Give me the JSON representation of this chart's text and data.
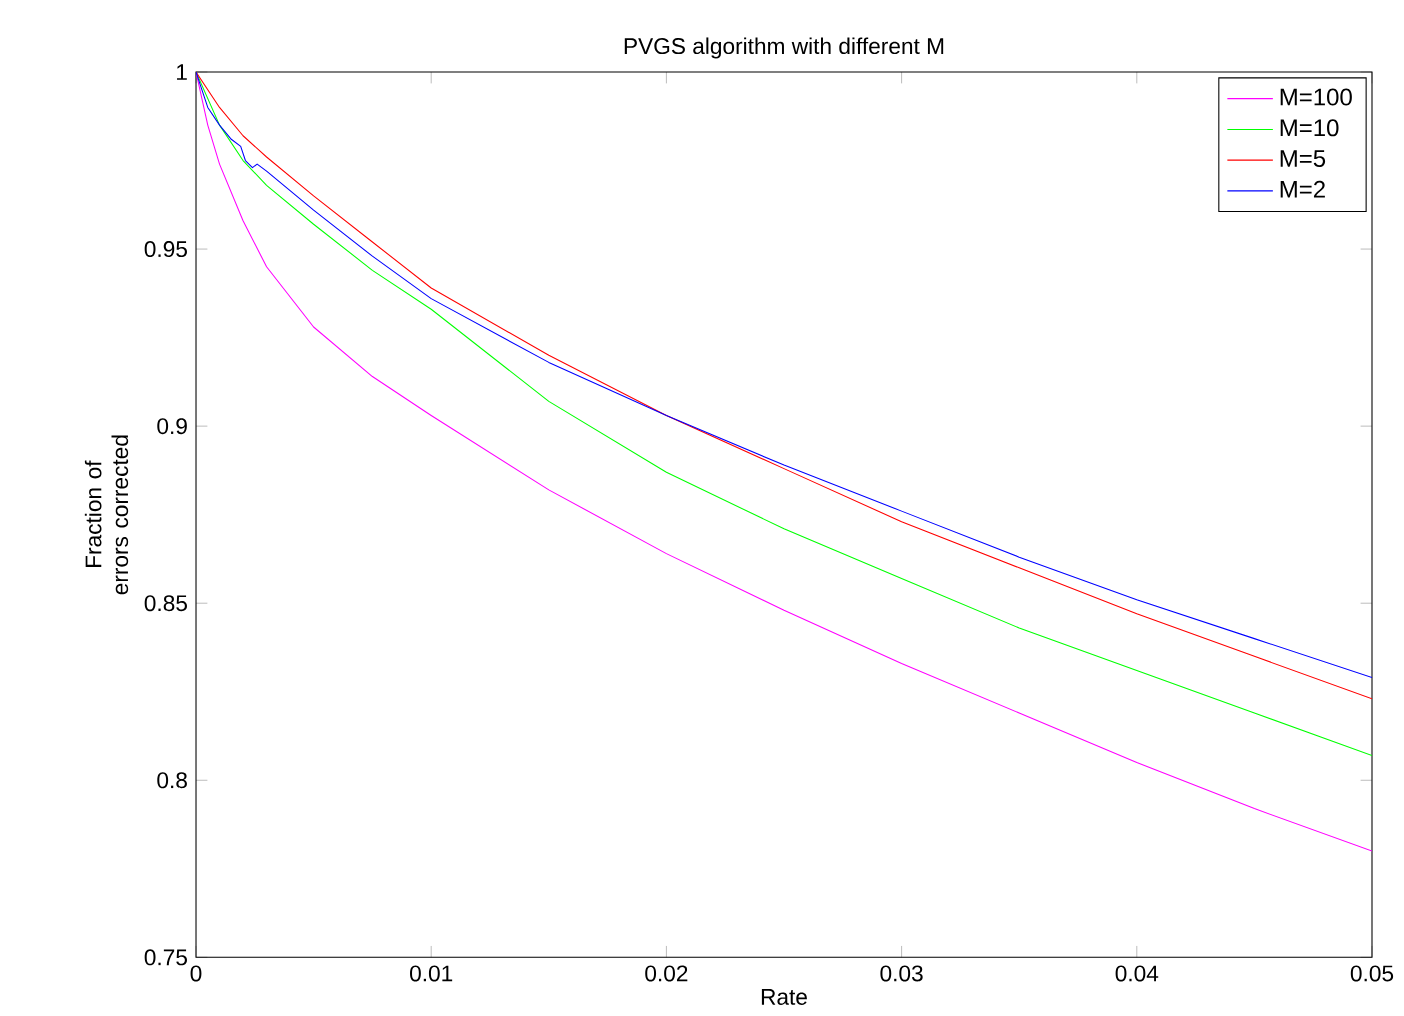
{
  "chart_data": {
    "type": "line",
    "title": "PVGS algorithm with different M",
    "xlabel": "Rate",
    "ylabel": "Fraction of errors corrected",
    "xlim": [
      0,
      0.05
    ],
    "ylim": [
      0.75,
      1
    ],
    "xticks": [
      0,
      0.01,
      0.02,
      0.03,
      0.04,
      0.05
    ],
    "yticks": [
      0.75,
      0.8,
      0.85,
      0.9,
      0.95,
      1
    ],
    "grid": false,
    "legend": "top right",
    "series": [
      {
        "name": "M=100",
        "color": "#ff00ff",
        "x": [
          0,
          0.0005,
          0.001,
          0.002,
          0.003,
          0.005,
          0.0075,
          0.01,
          0.015,
          0.02,
          0.025,
          0.03,
          0.035,
          0.04,
          0.045,
          0.05
        ],
        "values": [
          1,
          0.985,
          0.974,
          0.958,
          0.945,
          0.928,
          0.914,
          0.903,
          0.882,
          0.864,
          0.848,
          0.833,
          0.819,
          0.805,
          0.792,
          0.78
        ]
      },
      {
        "name": "M=10",
        "color": "#00ff00",
        "x": [
          0,
          0.001,
          0.002,
          0.003,
          0.005,
          0.0075,
          0.01,
          0.015,
          0.02,
          0.025,
          0.03,
          0.035,
          0.04,
          0.045,
          0.05
        ],
        "values": [
          1,
          0.985,
          0.975,
          0.968,
          0.957,
          0.944,
          0.933,
          0.907,
          0.887,
          0.871,
          0.857,
          0.843,
          0.831,
          0.819,
          0.807
        ]
      },
      {
        "name": "M=5",
        "color": "#ff0000",
        "x": [
          0,
          0.001,
          0.002,
          0.003,
          0.005,
          0.0075,
          0.01,
          0.015,
          0.02,
          0.025,
          0.03,
          0.035,
          0.04,
          0.045,
          0.05
        ],
        "values": [
          1,
          0.99,
          0.982,
          0.976,
          0.965,
          0.952,
          0.939,
          0.92,
          0.903,
          0.888,
          0.873,
          0.86,
          0.847,
          0.835,
          0.823
        ]
      },
      {
        "name": "M=2",
        "color": "#0000ff",
        "x": [
          0,
          0.0005,
          0.001,
          0.0015,
          0.0019,
          0.0021,
          0.0024,
          0.0026,
          0.003,
          0.005,
          0.0075,
          0.01,
          0.015,
          0.02,
          0.025,
          0.03,
          0.035,
          0.04,
          0.045,
          0.05
        ],
        "values": [
          1,
          0.99,
          0.985,
          0.981,
          0.979,
          0.975,
          0.973,
          0.974,
          0.972,
          0.961,
          0.948,
          0.936,
          0.918,
          0.903,
          0.889,
          0.876,
          0.863,
          0.851,
          0.84,
          0.829
        ]
      }
    ]
  }
}
